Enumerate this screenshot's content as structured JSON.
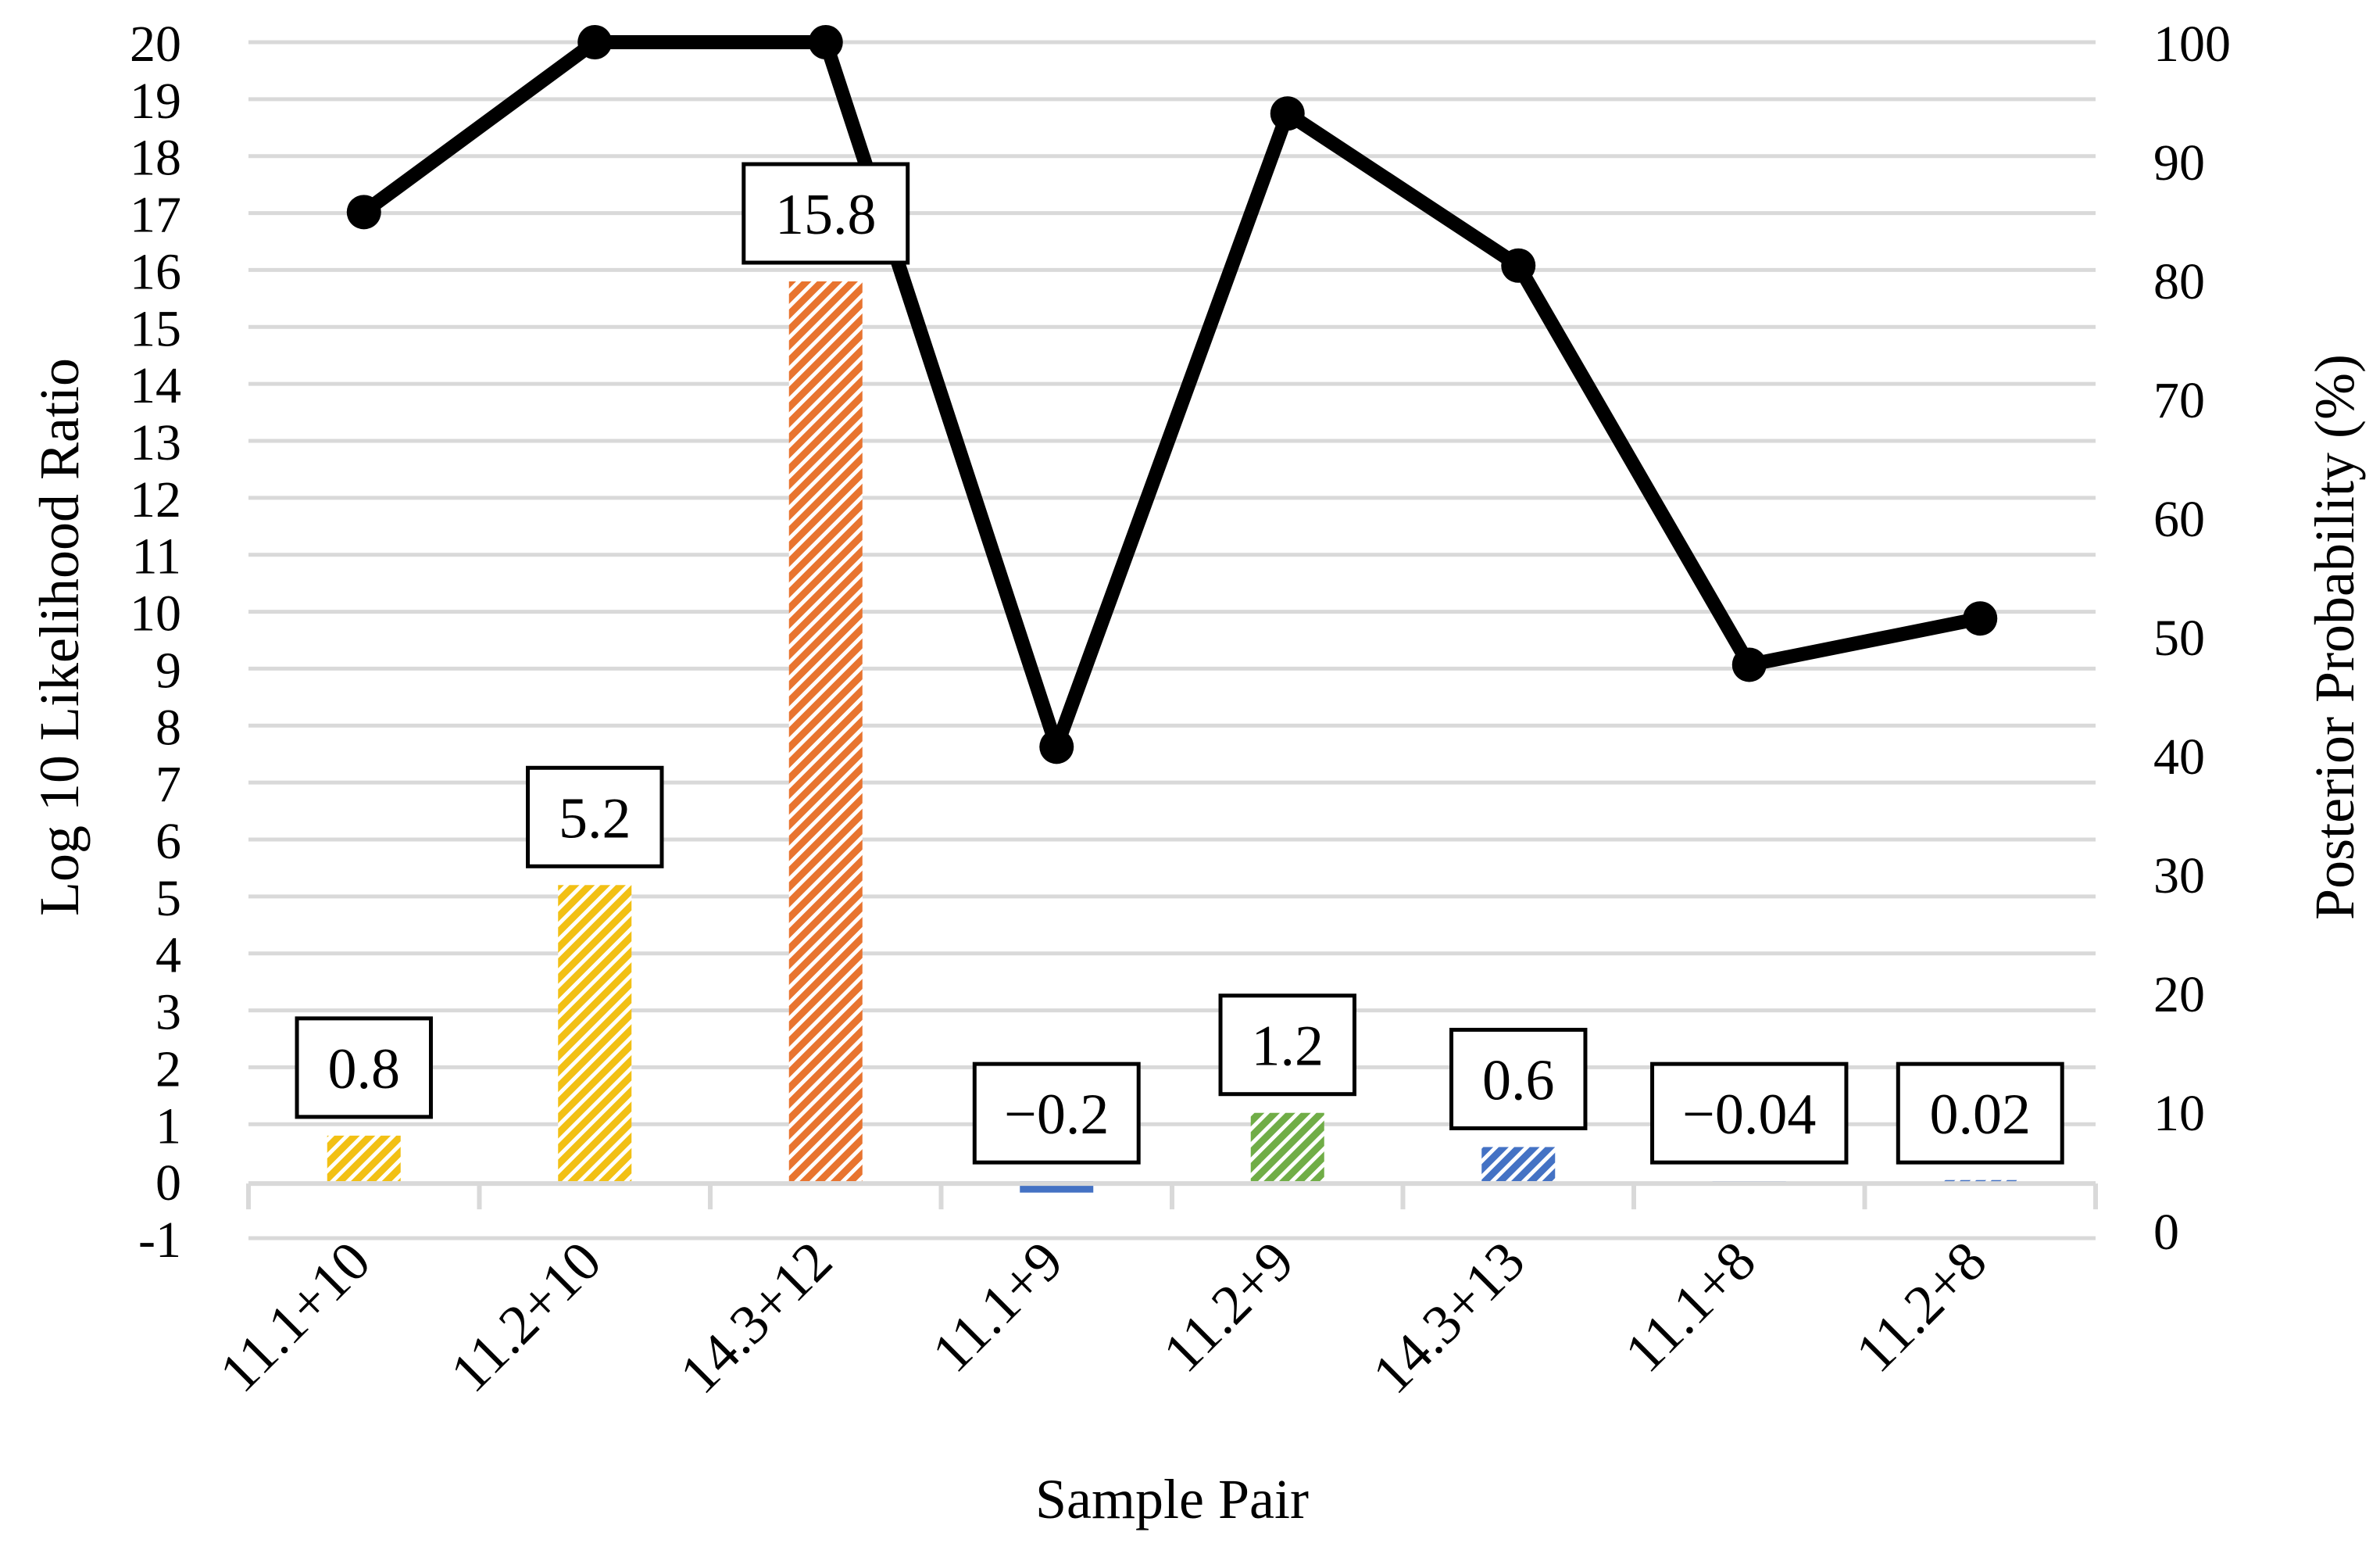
{
  "chart_data": {
    "type": "bar+line",
    "xlabel": "Sample Pair",
    "ylabel_left": "Log 10 Likelihood Ratio",
    "ylabel_right": "Posterior Probability (%)",
    "ylim_left": [
      -1,
      20
    ],
    "ylim_right": [
      0,
      100
    ],
    "yticks_left": [
      "-1",
      "0",
      "1",
      "2",
      "3",
      "4",
      "5",
      "6",
      "7",
      "8",
      "9",
      "10",
      "11",
      "12",
      "13",
      "14",
      "15",
      "16",
      "17",
      "18",
      "19",
      "20"
    ],
    "yticks_right": [
      "0",
      "10",
      "20",
      "30",
      "40",
      "50",
      "60",
      "70",
      "80",
      "90",
      "100"
    ],
    "grid": true,
    "legend": "none",
    "categories": [
      "11.1+10",
      "11.2+10",
      "14.3+12",
      "11.1+9",
      "11.2+9",
      "14.3+13",
      "11.1+8",
      "11.2+8"
    ],
    "bars": {
      "axis": "left",
      "values": [
        0.8,
        5.2,
        15.8,
        -0.2,
        1.2,
        0.6,
        -0.04,
        0.02
      ],
      "labels": [
        "0.8",
        "5.2",
        "15.8",
        "−0.2",
        "1.2",
        "0.6",
        "−0.04",
        "0.02"
      ],
      "colors": [
        "#f2c014",
        "#f2c014",
        "#e8742f",
        "#4472c4",
        "#70ad47",
        "#4472c4",
        "#4472c4",
        "#4472c4"
      ],
      "pattern": "diagonal-hatch"
    },
    "line": {
      "axis": "right",
      "values": [
        85.7,
        100,
        100,
        40.7,
        94,
        81.2,
        47.6,
        51.5
      ],
      "color": "#000000",
      "marker": "circle"
    }
  }
}
